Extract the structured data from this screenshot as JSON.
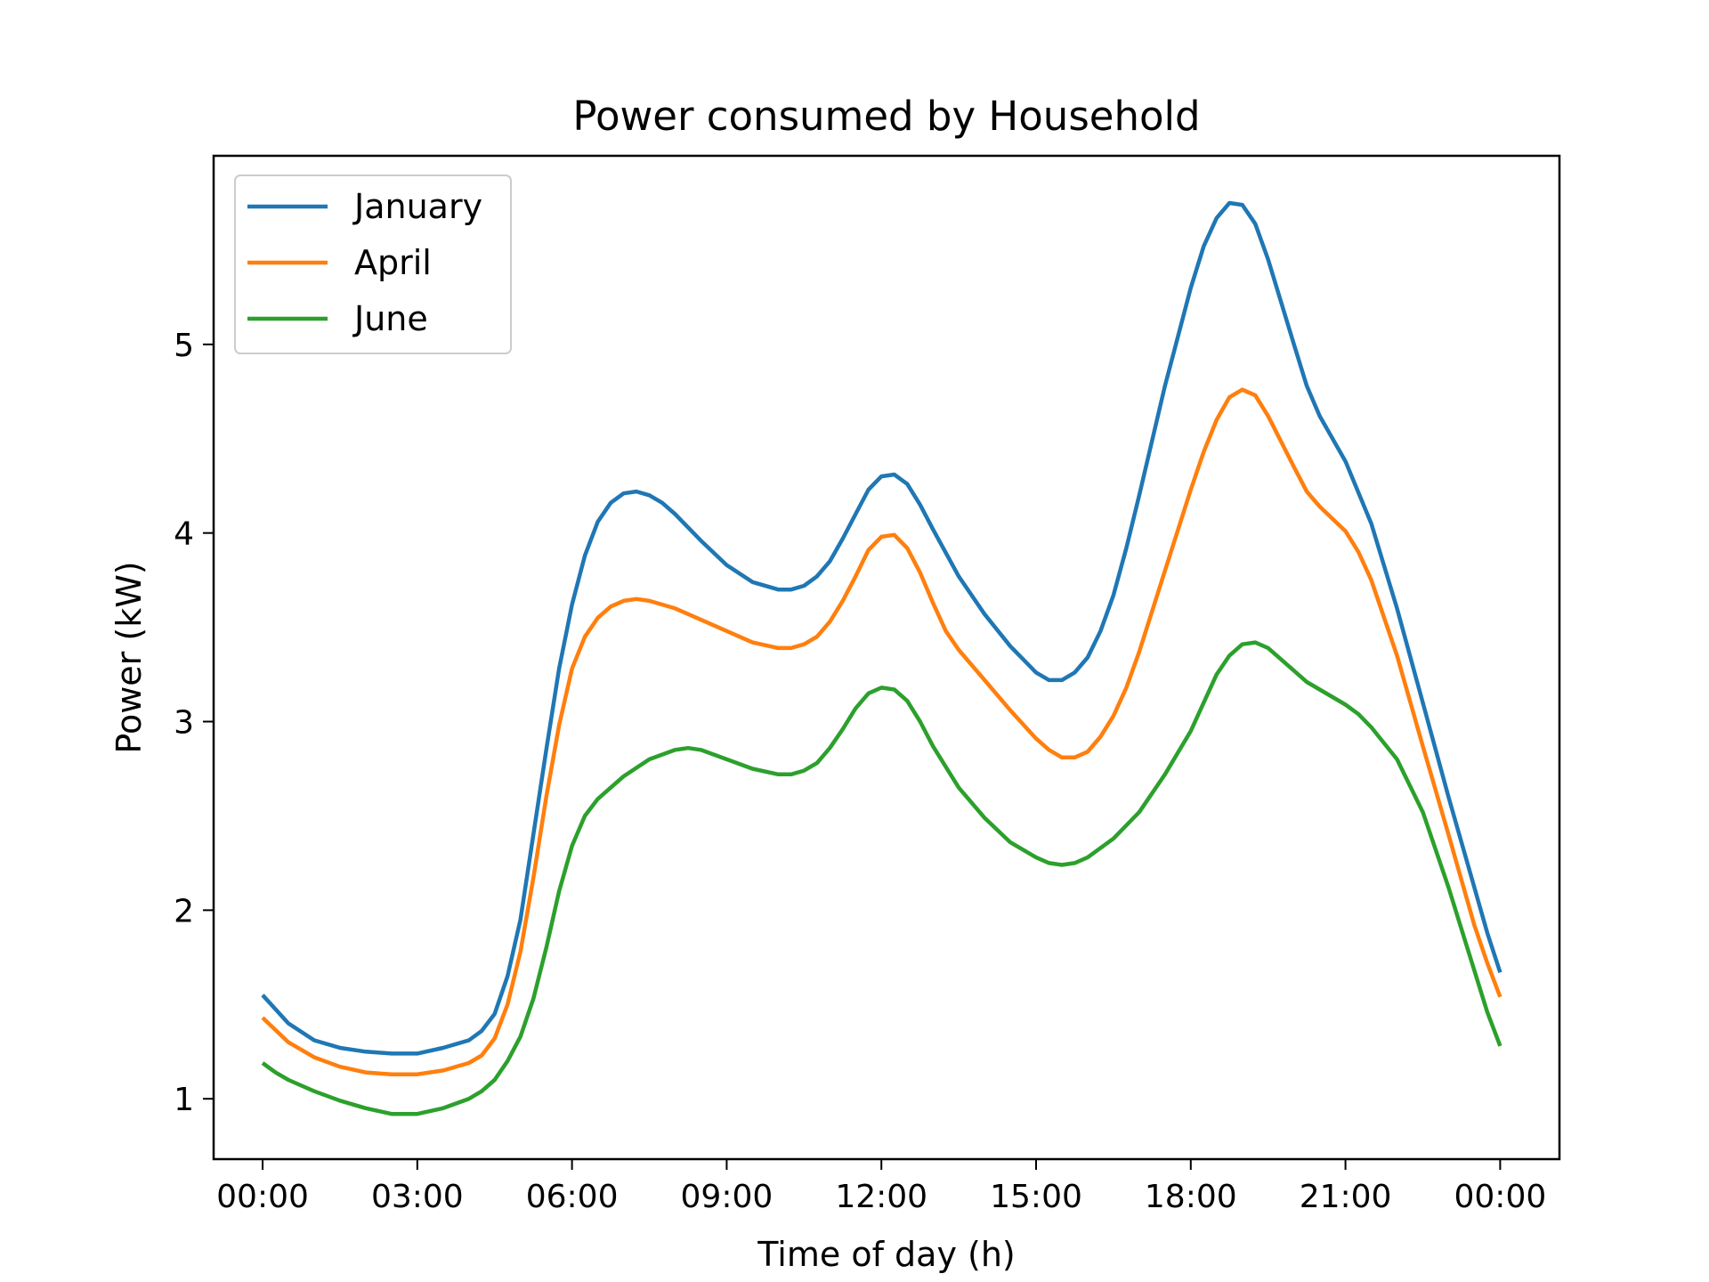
{
  "chart_data": {
    "type": "line",
    "title": "Power consumed by Household",
    "xlabel": "Time of day (h)",
    "ylabel": "Power (kW)",
    "xlim_hours": [
      -0.95,
      25.15
    ],
    "ylim": [
      0.68,
      6.0
    ],
    "x_ticks": [
      {
        "hour": 0,
        "label": "00:00"
      },
      {
        "hour": 3,
        "label": "03:00"
      },
      {
        "hour": 6,
        "label": "06:00"
      },
      {
        "hour": 9,
        "label": "09:00"
      },
      {
        "hour": 12,
        "label": "12:00"
      },
      {
        "hour": 15,
        "label": "15:00"
      },
      {
        "hour": 18,
        "label": "18:00"
      },
      {
        "hour": 21,
        "label": "21:00"
      },
      {
        "hour": 24,
        "label": "00:00"
      }
    ],
    "y_ticks": [
      1,
      2,
      3,
      4,
      5
    ],
    "grid": false,
    "legend_position": "upper-left",
    "series": [
      {
        "name": "January",
        "color": "#1f77b4",
        "points": [
          [
            0,
            1.55
          ],
          [
            0.5,
            1.4
          ],
          [
            1,
            1.31
          ],
          [
            1.5,
            1.27
          ],
          [
            2,
            1.25
          ],
          [
            2.5,
            1.24
          ],
          [
            3,
            1.24
          ],
          [
            3.5,
            1.27
          ],
          [
            4,
            1.31
          ],
          [
            4.25,
            1.36
          ],
          [
            4.5,
            1.45
          ],
          [
            4.75,
            1.65
          ],
          [
            5,
            1.95
          ],
          [
            5.25,
            2.4
          ],
          [
            5.5,
            2.85
          ],
          [
            5.75,
            3.28
          ],
          [
            6,
            3.62
          ],
          [
            6.25,
            3.88
          ],
          [
            6.5,
            4.06
          ],
          [
            6.75,
            4.16
          ],
          [
            7,
            4.21
          ],
          [
            7.25,
            4.22
          ],
          [
            7.5,
            4.2
          ],
          [
            7.75,
            4.16
          ],
          [
            8,
            4.1
          ],
          [
            8.5,
            3.96
          ],
          [
            9,
            3.83
          ],
          [
            9.5,
            3.74
          ],
          [
            10,
            3.7
          ],
          [
            10.25,
            3.7
          ],
          [
            10.5,
            3.72
          ],
          [
            10.75,
            3.77
          ],
          [
            11,
            3.85
          ],
          [
            11.25,
            3.97
          ],
          [
            11.5,
            4.1
          ],
          [
            11.75,
            4.23
          ],
          [
            12,
            4.3
          ],
          [
            12.25,
            4.31
          ],
          [
            12.5,
            4.26
          ],
          [
            12.75,
            4.15
          ],
          [
            13,
            4.02
          ],
          [
            13.5,
            3.77
          ],
          [
            14,
            3.57
          ],
          [
            14.5,
            3.4
          ],
          [
            15,
            3.26
          ],
          [
            15.25,
            3.22
          ],
          [
            15.5,
            3.22
          ],
          [
            15.75,
            3.26
          ],
          [
            16,
            3.34
          ],
          [
            16.25,
            3.48
          ],
          [
            16.5,
            3.67
          ],
          [
            16.75,
            3.92
          ],
          [
            17,
            4.2
          ],
          [
            17.5,
            4.78
          ],
          [
            18,
            5.3
          ],
          [
            18.25,
            5.52
          ],
          [
            18.5,
            5.67
          ],
          [
            18.75,
            5.75
          ],
          [
            19,
            5.74
          ],
          [
            19.25,
            5.64
          ],
          [
            19.5,
            5.45
          ],
          [
            20,
            5
          ],
          [
            20.25,
            4.78
          ],
          [
            20.5,
            4.62
          ],
          [
            21,
            4.38
          ],
          [
            21.5,
            4.05
          ],
          [
            22,
            3.6
          ],
          [
            22.5,
            3.1
          ],
          [
            23,
            2.6
          ],
          [
            23.5,
            2.12
          ],
          [
            23.75,
            1.88
          ],
          [
            24,
            1.67
          ]
        ]
      },
      {
        "name": "April",
        "color": "#ff7f0e",
        "points": [
          [
            0,
            1.43
          ],
          [
            0.5,
            1.3
          ],
          [
            1,
            1.22
          ],
          [
            1.5,
            1.17
          ],
          [
            2,
            1.14
          ],
          [
            2.5,
            1.13
          ],
          [
            3,
            1.13
          ],
          [
            3.5,
            1.15
          ],
          [
            4,
            1.19
          ],
          [
            4.25,
            1.23
          ],
          [
            4.5,
            1.32
          ],
          [
            4.75,
            1.5
          ],
          [
            5,
            1.78
          ],
          [
            5.25,
            2.17
          ],
          [
            5.5,
            2.6
          ],
          [
            5.75,
            2.98
          ],
          [
            6,
            3.28
          ],
          [
            6.25,
            3.45
          ],
          [
            6.5,
            3.55
          ],
          [
            6.75,
            3.61
          ],
          [
            7,
            3.64
          ],
          [
            7.25,
            3.65
          ],
          [
            7.5,
            3.64
          ],
          [
            8,
            3.6
          ],
          [
            8.5,
            3.54
          ],
          [
            9,
            3.48
          ],
          [
            9.5,
            3.42
          ],
          [
            10,
            3.39
          ],
          [
            10.25,
            3.39
          ],
          [
            10.5,
            3.41
          ],
          [
            10.75,
            3.45
          ],
          [
            11,
            3.53
          ],
          [
            11.25,
            3.64
          ],
          [
            11.5,
            3.77
          ],
          [
            11.75,
            3.91
          ],
          [
            12,
            3.98
          ],
          [
            12.25,
            3.99
          ],
          [
            12.5,
            3.92
          ],
          [
            12.75,
            3.79
          ],
          [
            13,
            3.63
          ],
          [
            13.25,
            3.48
          ],
          [
            13.5,
            3.38
          ],
          [
            14,
            3.22
          ],
          [
            14.5,
            3.06
          ],
          [
            15,
            2.91
          ],
          [
            15.25,
            2.85
          ],
          [
            15.5,
            2.81
          ],
          [
            15.75,
            2.81
          ],
          [
            16,
            2.84
          ],
          [
            16.25,
            2.92
          ],
          [
            16.5,
            3.03
          ],
          [
            16.75,
            3.18
          ],
          [
            17,
            3.37
          ],
          [
            17.5,
            3.8
          ],
          [
            18,
            4.23
          ],
          [
            18.25,
            4.43
          ],
          [
            18.5,
            4.6
          ],
          [
            18.75,
            4.72
          ],
          [
            19,
            4.76
          ],
          [
            19.25,
            4.73
          ],
          [
            19.5,
            4.62
          ],
          [
            20,
            4.35
          ],
          [
            20.25,
            4.22
          ],
          [
            20.5,
            4.14
          ],
          [
            21,
            4.01
          ],
          [
            21.25,
            3.9
          ],
          [
            21.5,
            3.75
          ],
          [
            22,
            3.35
          ],
          [
            22.5,
            2.87
          ],
          [
            23,
            2.4
          ],
          [
            23.5,
            1.92
          ],
          [
            23.75,
            1.72
          ],
          [
            24,
            1.54
          ]
        ]
      },
      {
        "name": "June",
        "color": "#2ca02c",
        "points": [
          [
            0,
            1.19
          ],
          [
            0.25,
            1.14
          ],
          [
            0.5,
            1.1
          ],
          [
            1,
            1.04
          ],
          [
            1.5,
            0.99
          ],
          [
            2,
            0.95
          ],
          [
            2.5,
            0.92
          ],
          [
            3,
            0.92
          ],
          [
            3.5,
            0.95
          ],
          [
            4,
            1.0
          ],
          [
            4.25,
            1.04
          ],
          [
            4.5,
            1.1
          ],
          [
            4.75,
            1.2
          ],
          [
            5,
            1.33
          ],
          [
            5.25,
            1.53
          ],
          [
            5.5,
            1.8
          ],
          [
            5.75,
            2.1
          ],
          [
            6,
            2.34
          ],
          [
            6.25,
            2.5
          ],
          [
            6.5,
            2.59
          ],
          [
            7,
            2.71
          ],
          [
            7.5,
            2.8
          ],
          [
            8,
            2.85
          ],
          [
            8.25,
            2.86
          ],
          [
            8.5,
            2.85
          ],
          [
            9,
            2.8
          ],
          [
            9.5,
            2.75
          ],
          [
            10,
            2.72
          ],
          [
            10.25,
            2.72
          ],
          [
            10.5,
            2.74
          ],
          [
            10.75,
            2.78
          ],
          [
            11,
            2.86
          ],
          [
            11.25,
            2.96
          ],
          [
            11.5,
            3.07
          ],
          [
            11.75,
            3.15
          ],
          [
            12,
            3.18
          ],
          [
            12.25,
            3.17
          ],
          [
            12.5,
            3.11
          ],
          [
            12.75,
            3.0
          ],
          [
            13,
            2.87
          ],
          [
            13.5,
            2.65
          ],
          [
            14,
            2.49
          ],
          [
            14.5,
            2.36
          ],
          [
            15,
            2.28
          ],
          [
            15.25,
            2.25
          ],
          [
            15.5,
            2.24
          ],
          [
            15.75,
            2.25
          ],
          [
            16,
            2.28
          ],
          [
            16.5,
            2.38
          ],
          [
            17,
            2.52
          ],
          [
            17.5,
            2.72
          ],
          [
            18,
            2.95
          ],
          [
            18.25,
            3.1
          ],
          [
            18.5,
            3.25
          ],
          [
            18.75,
            3.35
          ],
          [
            19,
            3.41
          ],
          [
            19.25,
            3.42
          ],
          [
            19.5,
            3.39
          ],
          [
            20,
            3.27
          ],
          [
            20.25,
            3.21
          ],
          [
            20.5,
            3.17
          ],
          [
            21,
            3.09
          ],
          [
            21.25,
            3.04
          ],
          [
            21.5,
            2.97
          ],
          [
            22,
            2.8
          ],
          [
            22.5,
            2.52
          ],
          [
            23,
            2.12
          ],
          [
            23.5,
            1.68
          ],
          [
            23.75,
            1.46
          ],
          [
            24,
            1.28
          ]
        ]
      }
    ]
  }
}
